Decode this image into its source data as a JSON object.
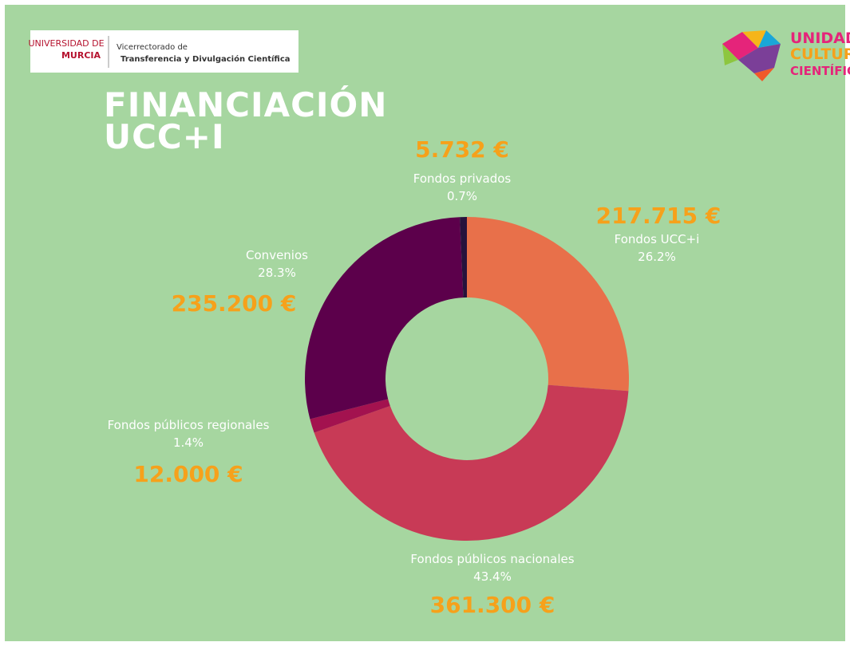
{
  "header": {
    "university_line1": "UNIVERSIDAD DE",
    "university_line2": "MURCIA",
    "office_line1": "Vicerrectorado de",
    "office_line2": "Transferencia y Divulgación Científica",
    "logo_line1": "UNIDAD",
    "logo_line2": "CULTURA",
    "logo_line3": "CIENTÍFICA"
  },
  "chart_data": {
    "type": "donut",
    "title": "FINANCIACIÓN UCC+I",
    "categories": [
      "Fondos UCC+i",
      "Fondos públicos nacionales",
      "Fondos públicos regionales",
      "Convenios",
      "Fondos privados"
    ],
    "values": [
      26.2,
      43.4,
      1.4,
      28.3,
      0.7
    ],
    "value_labels": [
      "26.2%",
      "43.4%",
      "1.4%",
      "28.3%",
      "0.7%"
    ],
    "amounts": [
      "217.715 €",
      "361.300 €",
      "12.000 €",
      "235.200 €",
      "5.732 €"
    ],
    "colors": [
      "#e8704a",
      "#c83a56",
      "#a3124f",
      "#5c004b",
      "#26123c"
    ]
  }
}
